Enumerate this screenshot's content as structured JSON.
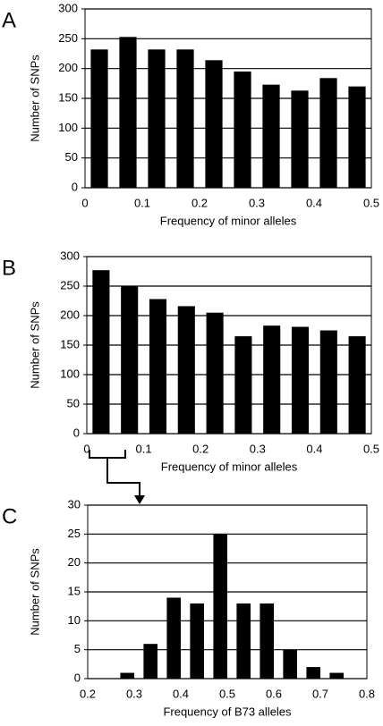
{
  "chart_data": [
    {
      "type": "histogram",
      "label": "A",
      "xlabel": "Frequency  of minor alleles",
      "ylabel": "Number of SNPs",
      "bins": [
        0,
        0.05,
        0.1,
        0.15,
        0.2,
        0.25,
        0.3,
        0.35,
        0.4,
        0.45,
        0.5
      ],
      "counts": [
        232,
        253,
        232,
        232,
        214,
        195,
        173,
        163,
        184,
        170
      ],
      "color": "#000000",
      "xlim": [
        0,
        0.5
      ],
      "ylim": [
        0,
        300
      ],
      "xticks": [
        0,
        0.1,
        0.2,
        0.3,
        0.4,
        0.5
      ],
      "yticks": [
        0,
        50,
        100,
        150,
        200,
        250,
        300
      ],
      "grid": true
    },
    {
      "type": "histogram",
      "label": "B",
      "xlabel": "Frequency  of minor alleles",
      "ylabel": "Number of SNPs",
      "bins": [
        0,
        0.05,
        0.1,
        0.15,
        0.2,
        0.25,
        0.3,
        0.35,
        0.4,
        0.45,
        0.5
      ],
      "counts": [
        277,
        250,
        228,
        216,
        205,
        165,
        183,
        181,
        175,
        165
      ],
      "color": "#000000",
      "xlim": [
        0,
        0.5
      ],
      "ylim": [
        0,
        300
      ],
      "xticks": [
        0,
        0.1,
        0.2,
        0.3,
        0.4,
        0.5
      ],
      "yticks": [
        0,
        50,
        100,
        150,
        200,
        250,
        300
      ],
      "grid": true
    },
    {
      "type": "histogram",
      "label": "C",
      "xlabel": "Frequency of B73 alleles",
      "ylabel": "Number of SNPs",
      "bins": [
        0.26,
        0.31,
        0.36,
        0.41,
        0.46,
        0.51,
        0.56,
        0.61,
        0.66,
        0.71,
        0.76
      ],
      "counts": [
        1,
        6,
        14,
        13,
        25,
        13,
        13,
        5,
        2,
        1
      ],
      "color": "#000000",
      "xlim": [
        0.2,
        0.8
      ],
      "ylim": [
        0,
        30
      ],
      "xticks": [
        0.2,
        0.3,
        0.4,
        0.5,
        0.6,
        0.7,
        0.8
      ],
      "yticks": [
        0,
        5,
        10,
        15,
        20,
        25,
        30
      ],
      "grid": true
    }
  ]
}
